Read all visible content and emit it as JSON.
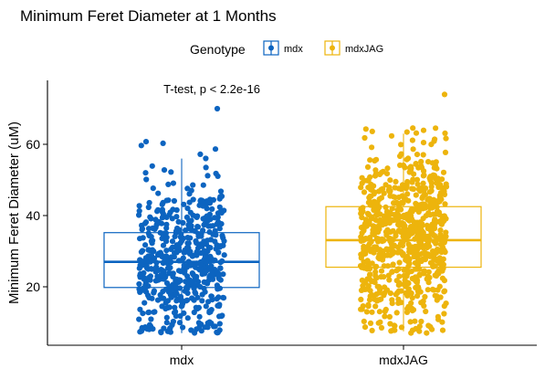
{
  "chart_data": {
    "type": "box",
    "title": "Minimum Feret Diameter at 1 Months",
    "xlabel": "",
    "ylabel": "Minimum Feret Diameter (uM)",
    "categories": [
      "mdx",
      "mdxJAG"
    ],
    "y_ticks": [
      20,
      40,
      60
    ],
    "ylim": [
      4,
      78
    ],
    "legend": {
      "title": "Genotype",
      "placement": "top",
      "entries": [
        "mdx",
        "mdxJAG"
      ]
    },
    "annotation": "T-test, p < 2.2e-16",
    "series": [
      {
        "name": "mdx",
        "color": "#0c64c0",
        "box": {
          "q1": 19.8,
          "median": 27.0,
          "q3": 35.2,
          "whisker_low": 7.0,
          "whisker_high": 56.0
        },
        "n_points": 560,
        "y_range": [
          7,
          61
        ],
        "max_point": 70
      },
      {
        "name": "mdxJAG",
        "color": "#edb40c",
        "box": {
          "q1": 25.5,
          "median": 33.1,
          "q3": 42.5,
          "whisker low": 7.5,
          "whisker_high": 63.0
        },
        "n_points": 780,
        "y_range": [
          7,
          66
        ],
        "max_point": 74
      }
    ]
  }
}
